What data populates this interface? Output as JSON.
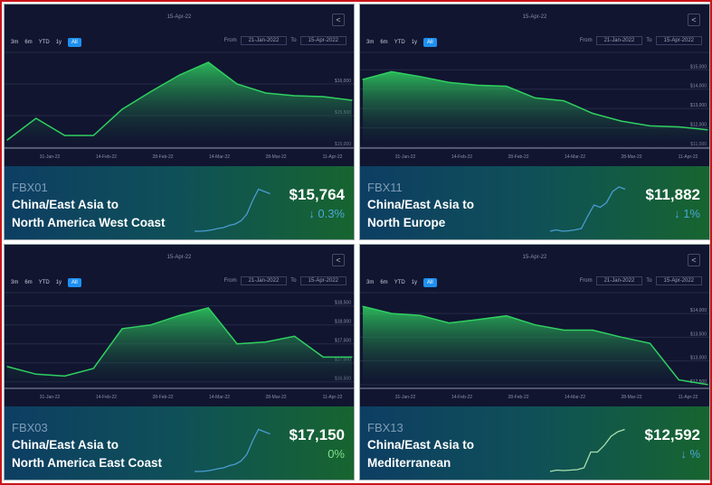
{
  "common": {
    "header_date": "15-Apr-22",
    "ranges": [
      "3m",
      "6m",
      "YTD",
      "1y",
      "All"
    ],
    "active_range": "All",
    "from_label": "From",
    "from_value": "21-Jan-2022",
    "to_label": "To",
    "to_value": "15-Apr-2022",
    "x_labels": [
      "31-Jan-22",
      "14-Feb-22",
      "28-Feb-22",
      "14-Mar-22",
      "28-Mar-22",
      "11-Apr-22"
    ]
  },
  "colors": {
    "line": "#2fd160",
    "frame": "#c8151b",
    "spark": "#4a9bd0",
    "chg_down": "#4ba6d8",
    "chg_flat": "#7ee08a"
  },
  "panels": [
    {
      "code": "FBX01",
      "name_line1": "China/East Asia to",
      "name_line2": "North America West Coast",
      "price": "$15,764",
      "change": "↓ 0.3%",
      "change_dir": "down",
      "chart_data": {
        "type": "area",
        "ylim": [
          15000,
          16500
        ],
        "y_ticks": [
          {
            "v": 16000,
            "label": "$16,000"
          },
          {
            "v": 15500,
            "label": "$15,500"
          },
          {
            "v": 15000,
            "label": "$15,000"
          }
        ],
        "values": [
          15114,
          15457,
          15186,
          15186,
          15600,
          15880,
          16143,
          16343,
          16000,
          15857,
          15814,
          15800,
          15743
        ]
      },
      "sparkline": [
        0.02,
        0.02,
        0.03,
        0.05,
        0.08,
        0.1,
        0.15,
        0.18,
        0.25,
        0.4,
        0.7,
        0.95,
        0.9,
        0.85
      ]
    },
    {
      "code": "FBX11",
      "name_line1": "China/East Asia to",
      "name_line2": "North Europe",
      "price": "$11,882",
      "change": "↓ 1%",
      "change_dir": "down",
      "chart_data": {
        "type": "area",
        "ylim": [
          11000,
          15900
        ],
        "y_ticks": [
          {
            "v": 15000,
            "label": "$15,000"
          },
          {
            "v": 14000,
            "label": "$14,000"
          },
          {
            "v": 13000,
            "label": "$13,000"
          },
          {
            "v": 12000,
            "label": "$12,000"
          },
          {
            "v": 11000,
            "label": "$11,000"
          }
        ],
        "values": [
          14500,
          14900,
          14650,
          14350,
          14200,
          14150,
          13550,
          13400,
          12750,
          12350,
          12100,
          12050,
          11900
        ]
      },
      "sparkline": [
        0.02,
        0.05,
        0.02,
        0.03,
        0.05,
        0.08,
        0.35,
        0.6,
        0.55,
        0.65,
        0.9,
        1.0,
        0.95
      ]
    },
    {
      "code": "FBX03",
      "name_line1": "China/East Asia to",
      "name_line2": "North America East Coast",
      "price": "$17,150",
      "change": "0%",
      "change_dir": "flat",
      "chart_data": {
        "type": "area",
        "ylim": [
          16350,
          18850
        ],
        "y_ticks": [
          {
            "v": 18500,
            "label": "$18,500"
          },
          {
            "v": 18000,
            "label": "$18,000"
          },
          {
            "v": 17500,
            "label": "$17,500"
          },
          {
            "v": 17000,
            "label": "$17,000"
          },
          {
            "v": 16500,
            "label": "$16,500"
          }
        ],
        "values": [
          16900,
          16700,
          16650,
          16850,
          17900,
          18000,
          18250,
          18450,
          17500,
          17550,
          17700,
          17150,
          17150
        ]
      },
      "sparkline": [
        0.02,
        0.02,
        0.03,
        0.05,
        0.08,
        0.1,
        0.15,
        0.18,
        0.25,
        0.4,
        0.7,
        0.95,
        0.9,
        0.85
      ]
    },
    {
      "code": "FBX13",
      "name_line1": "China/East Asia to",
      "name_line2": "Mediterranean",
      "price": "$12,592",
      "change": "↓ %",
      "change_dir": "down",
      "chart_data": {
        "type": "area",
        "ylim": [
          12440,
          14440
        ],
        "y_ticks": [
          {
            "v": 14000,
            "label": "$14,000"
          },
          {
            "v": 13500,
            "label": "$13,500"
          },
          {
            "v": 13000,
            "label": "$13,000"
          },
          {
            "v": 12500,
            "label": "$12,500"
          }
        ],
        "values": [
          14150,
          14000,
          13960,
          13800,
          13870,
          13950,
          13760,
          13650,
          13650,
          13500,
          13370,
          12600,
          12500
        ]
      },
      "sparkline": [
        0.02,
        0.05,
        0.04,
        0.05,
        0.06,
        0.1,
        0.45,
        0.45,
        0.6,
        0.8,
        0.9,
        0.95
      ]
    }
  ]
}
